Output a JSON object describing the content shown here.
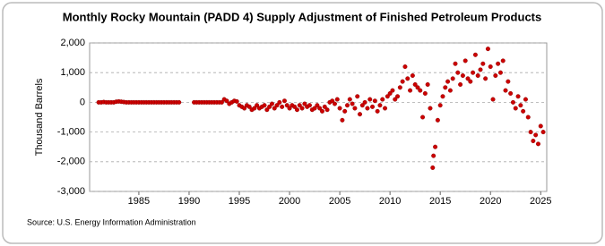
{
  "chart_data": {
    "type": "scatter",
    "title": "Monthly Rocky Mountain (PADD 4) Supply Adjustment of Finished Petroleum Products",
    "y_label": "Thousand Barrels",
    "source": "Source: U.S. Energy Information Administration",
    "color": "#cc0000",
    "grid": true,
    "xlim": [
      1980.1,
      2025.6
    ],
    "xticks": [
      1985,
      1990,
      1995,
      2000,
      2005,
      2010,
      2015,
      2020,
      2025
    ],
    "ylim": [
      -3000,
      2000
    ],
    "yticks": [
      {
        "value": 2000,
        "label": "2,000"
      },
      {
        "value": 1000,
        "label": "1,000"
      },
      0,
      {
        "value": -1000,
        "label": "-1,000"
      },
      {
        "value": -2000,
        "label": "-2,000"
      },
      {
        "value": -3000,
        "label": "-3,000"
      }
    ],
    "x": [
      1981,
      1981.25,
      1981.5,
      1981.75,
      1982,
      1982.25,
      1982.5,
      1982.75,
      1983,
      1983.25,
      1983.5,
      1983.75,
      1984,
      1984.25,
      1984.5,
      1984.75,
      1985,
      1985.25,
      1985.5,
      1985.75,
      1986,
      1986.25,
      1986.5,
      1986.75,
      1987,
      1987.25,
      1987.5,
      1987.75,
      1988,
      1988.25,
      1988.5,
      1988.75,
      1989,
      1990.5,
      1990.75,
      1991,
      1991.25,
      1991.5,
      1991.75,
      1992,
      1992.25,
      1992.5,
      1992.75,
      1993,
      1993.25,
      1993.5,
      1993.75,
      1994,
      1994.25,
      1994.5,
      1994.75,
      1995,
      1995.25,
      1995.5,
      1995.75,
      1996,
      1996.25,
      1996.5,
      1996.75,
      1997,
      1997.25,
      1997.5,
      1997.75,
      1998,
      1998.25,
      1998.5,
      1998.75,
      1999,
      1999.25,
      1999.5,
      1999.75,
      2000,
      2000.25,
      2000.5,
      2000.75,
      2001,
      2001.25,
      2001.5,
      2001.75,
      2002,
      2002.25,
      2002.5,
      2002.75,
      2003,
      2003.25,
      2003.5,
      2003.75,
      2004,
      2004.25,
      2004.5,
      2004.75,
      2005,
      2005.25,
      2005.5,
      2005.75,
      2006,
      2006.25,
      2006.5,
      2006.75,
      2007,
      2007.25,
      2007.5,
      2007.75,
      2008,
      2008.25,
      2008.5,
      2008.75,
      2009,
      2009.25,
      2009.5,
      2009.75,
      2010,
      2010.25,
      2010.5,
      2010.75,
      2011,
      2011.25,
      2011.5,
      2011.75,
      2012,
      2012.25,
      2012.5,
      2012.75,
      2013,
      2013.25,
      2013.5,
      2013.75,
      2014,
      2014.25,
      2014.33,
      2014.5,
      2014.75,
      2015,
      2015.25,
      2015.5,
      2015.75,
      2016,
      2016.25,
      2016.5,
      2016.75,
      2017,
      2017.25,
      2017.5,
      2017.75,
      2018,
      2018.25,
      2018.5,
      2018.75,
      2019,
      2019.25,
      2019.5,
      2019.75,
      2020,
      2020.25,
      2020.5,
      2020.75,
      2021,
      2021.25,
      2021.5,
      2021.75,
      2022,
      2022.25,
      2022.5,
      2022.75,
      2023,
      2023.25,
      2023.5,
      2023.75,
      2024,
      2024.25,
      2024.5,
      2024.75,
      2025,
      2025.25
    ],
    "values": [
      0,
      0,
      10,
      0,
      0,
      0,
      0,
      20,
      30,
      20,
      10,
      0,
      0,
      0,
      0,
      0,
      0,
      0,
      0,
      0,
      0,
      0,
      0,
      0,
      0,
      0,
      0,
      0,
      0,
      0,
      0,
      0,
      0,
      0,
      0,
      0,
      0,
      0,
      0,
      0,
      0,
      0,
      0,
      0,
      0,
      100,
      50,
      -50,
      0,
      50,
      30,
      -100,
      -150,
      -200,
      -100,
      -150,
      -250,
      -200,
      -100,
      -200,
      -150,
      -100,
      -250,
      -150,
      -50,
      -200,
      -100,
      0,
      -150,
      50,
      -100,
      -200,
      -100,
      -150,
      -250,
      -100,
      -200,
      -50,
      -150,
      -100,
      -250,
      -200,
      -100,
      -200,
      -300,
      -150,
      -250,
      0,
      50,
      -50,
      100,
      -200,
      -600,
      -300,
      -100,
      100,
      -50,
      -200,
      200,
      -400,
      -100,
      0,
      -200,
      100,
      -150,
      50,
      -300,
      -100,
      100,
      -200,
      200,
      300,
      400,
      100,
      200,
      500,
      700,
      1200,
      800,
      400,
      900,
      600,
      500,
      400,
      -500,
      300,
      600,
      -200,
      -2200,
      -1800,
      -1500,
      -600,
      -100,
      200,
      500,
      700,
      400,
      800,
      1300,
      1000,
      600,
      900,
      1400,
      800,
      700,
      1000,
      1600,
      900,
      1100,
      1300,
      800,
      1800,
      1200,
      100,
      900,
      1300,
      1000,
      1400,
      400,
      700,
      300,
      0,
      -200,
      200,
      -100,
      -300,
      100,
      -500,
      -1000,
      -1300,
      -1100,
      -1400,
      -800,
      -1000
    ]
  }
}
